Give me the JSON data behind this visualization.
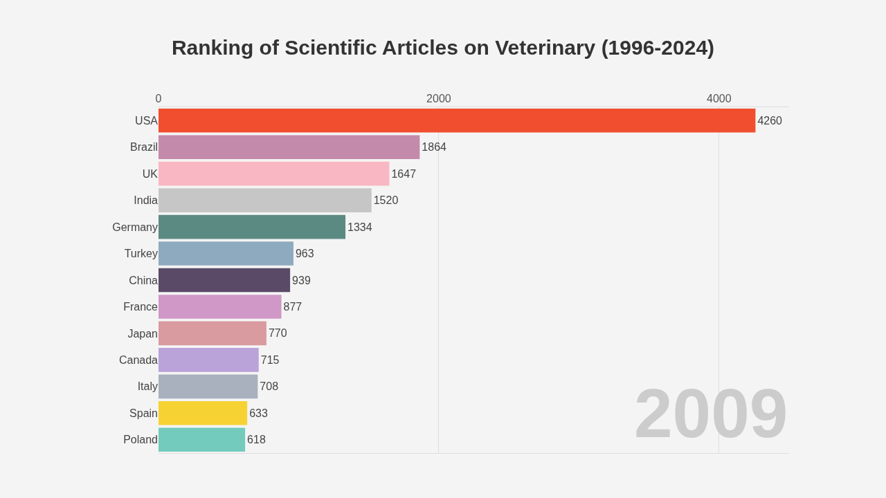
{
  "chart_data": {
    "type": "bar",
    "orientation": "horizontal",
    "title": "Ranking of Scientific Articles on Veterinary (1996-2024)",
    "categories": [
      "USA",
      "Brazil",
      "UK",
      "India",
      "Germany",
      "Turkey",
      "China",
      "France",
      "Japan",
      "Canada",
      "Italy",
      "Spain",
      "Poland"
    ],
    "values": [
      4260,
      1864,
      1647,
      1520,
      1334,
      963,
      939,
      877,
      770,
      715,
      708,
      633,
      618
    ],
    "colors": [
      "#f04e2e",
      "#c48aab",
      "#f8b7c2",
      "#c6c6c6",
      "#5b8a82",
      "#8eaabe",
      "#5a4a68",
      "#d098c6",
      "#d99aa0",
      "#b9a3d9",
      "#a9b0be",
      "#f7d233",
      "#73cbbd"
    ],
    "xlim": [
      0,
      4500
    ],
    "xticks": [
      0,
      2000,
      4000
    ],
    "grid": "x",
    "data_labels": true,
    "legend": false,
    "annotations": [
      "2009"
    ]
  }
}
